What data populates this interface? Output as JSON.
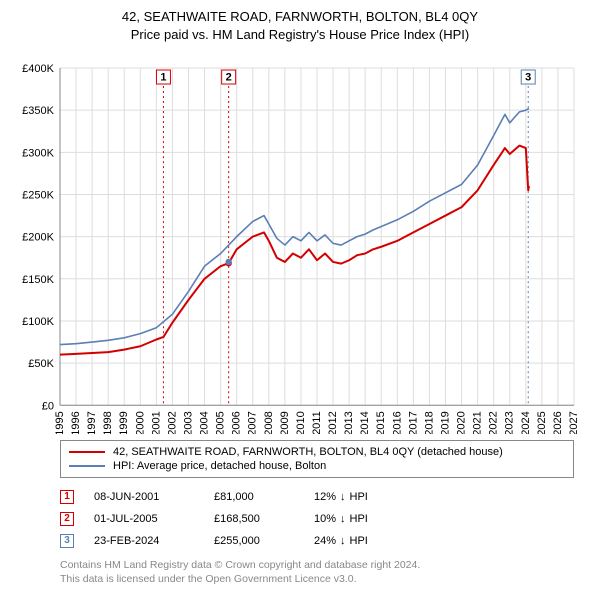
{
  "titles": {
    "line1": "42, SEATHWAITE ROAD, FARNWORTH, BOLTON, BL4 0QY",
    "line2": "Price paid vs. HM Land Registry's House Price Index (HPI)"
  },
  "chart": {
    "type": "line",
    "background_color": "#ffffff",
    "grid_color": "#dedede",
    "axis_color": "#888888",
    "tick_label_color": "#000000",
    "tick_fontsize": 11,
    "x_years": [
      1995,
      1996,
      1997,
      1998,
      1999,
      2000,
      2001,
      2002,
      2003,
      2004,
      2005,
      2006,
      2007,
      2008,
      2009,
      2010,
      2011,
      2012,
      2013,
      2014,
      2015,
      2016,
      2017,
      2018,
      2019,
      2020,
      2021,
      2022,
      2023,
      2024,
      2025,
      2026,
      2027
    ],
    "xlim": [
      1995,
      2027
    ],
    "ylim": [
      0,
      400000
    ],
    "ytick_step": 50000,
    "ytick_labels": [
      "£0",
      "£50K",
      "£100K",
      "£150K",
      "£200K",
      "£250K",
      "£300K",
      "£350K",
      "£400K"
    ],
    "series": [
      {
        "id": "property",
        "color": "#d40000",
        "line_width": 2,
        "points": [
          [
            1995,
            60000
          ],
          [
            1996,
            61000
          ],
          [
            1997,
            62000
          ],
          [
            1998,
            63000
          ],
          [
            1999,
            66000
          ],
          [
            2000,
            70000
          ],
          [
            2001,
            78000
          ],
          [
            2001.44,
            81000
          ],
          [
            2002,
            98000
          ],
          [
            2003,
            125000
          ],
          [
            2004,
            150000
          ],
          [
            2005,
            165000
          ],
          [
            2005.5,
            168500
          ],
          [
            2006,
            185000
          ],
          [
            2007,
            200000
          ],
          [
            2007.7,
            205000
          ],
          [
            2008,
            195000
          ],
          [
            2008.5,
            175000
          ],
          [
            2009,
            170000
          ],
          [
            2009.5,
            180000
          ],
          [
            2010,
            175000
          ],
          [
            2010.5,
            185000
          ],
          [
            2011,
            172000
          ],
          [
            2011.5,
            180000
          ],
          [
            2012,
            170000
          ],
          [
            2012.5,
            168000
          ],
          [
            2013,
            172000
          ],
          [
            2013.5,
            178000
          ],
          [
            2014,
            180000
          ],
          [
            2014.5,
            185000
          ],
          [
            2015,
            188000
          ],
          [
            2016,
            195000
          ],
          [
            2017,
            205000
          ],
          [
            2018,
            215000
          ],
          [
            2019,
            225000
          ],
          [
            2020,
            235000
          ],
          [
            2021,
            255000
          ],
          [
            2022,
            285000
          ],
          [
            2022.7,
            305000
          ],
          [
            2023,
            298000
          ],
          [
            2023.6,
            308000
          ],
          [
            2024,
            305000
          ],
          [
            2024.15,
            255000
          ],
          [
            2024.2,
            260000
          ]
        ]
      },
      {
        "id": "hpi",
        "color": "#5b7fb5",
        "line_width": 1.6,
        "points": [
          [
            1995,
            72000
          ],
          [
            1996,
            73000
          ],
          [
            1997,
            75000
          ],
          [
            1998,
            77000
          ],
          [
            1999,
            80000
          ],
          [
            2000,
            85000
          ],
          [
            2001,
            92000
          ],
          [
            2002,
            108000
          ],
          [
            2003,
            135000
          ],
          [
            2004,
            165000
          ],
          [
            2005,
            180000
          ],
          [
            2006,
            200000
          ],
          [
            2007,
            218000
          ],
          [
            2007.7,
            225000
          ],
          [
            2008,
            215000
          ],
          [
            2008.5,
            198000
          ],
          [
            2009,
            190000
          ],
          [
            2009.5,
            200000
          ],
          [
            2010,
            195000
          ],
          [
            2010.5,
            205000
          ],
          [
            2011,
            195000
          ],
          [
            2011.5,
            202000
          ],
          [
            2012,
            192000
          ],
          [
            2012.5,
            190000
          ],
          [
            2013,
            195000
          ],
          [
            2013.5,
            200000
          ],
          [
            2014,
            203000
          ],
          [
            2014.5,
            208000
          ],
          [
            2015,
            212000
          ],
          [
            2016,
            220000
          ],
          [
            2017,
            230000
          ],
          [
            2018,
            242000
          ],
          [
            2019,
            252000
          ],
          [
            2020,
            262000
          ],
          [
            2021,
            285000
          ],
          [
            2022,
            320000
          ],
          [
            2022.7,
            345000
          ],
          [
            2023,
            335000
          ],
          [
            2023.6,
            348000
          ],
          [
            2024,
            350000
          ],
          [
            2024.2,
            352000
          ]
        ]
      }
    ],
    "hpi_point_marker": {
      "fill": "#5b7fb5",
      "radius": 3.2,
      "at": [
        2005.5,
        170000
      ]
    },
    "property_point_marker": {
      "fill": "#d40000",
      "radius": 3.2,
      "at": [
        2005.5,
        168500
      ]
    },
    "vertical_markers": [
      {
        "label": "1",
        "year": 2001.44,
        "color": "#d40000"
      },
      {
        "label": "2",
        "year": 2005.5,
        "color": "#d40000"
      },
      {
        "label": "3",
        "year": 2024.15,
        "color": "#5b7fb5"
      }
    ],
    "marker_box": {
      "size": 14,
      "bg": "#ffffff",
      "fontsize": 10
    }
  },
  "legend": {
    "items": [
      {
        "color": "#d40000",
        "label": "42, SEATHWAITE ROAD, FARNWORTH, BOLTON, BL4 0QY (detached house)"
      },
      {
        "color": "#5b7fb5",
        "label": "HPI: Average price, detached house, Bolton"
      }
    ]
  },
  "transactions": [
    {
      "n": "1",
      "color": "#d40000",
      "date": "08-JUN-2001",
      "price": "£81,000",
      "delta": "12%",
      "suffix": "HPI"
    },
    {
      "n": "2",
      "color": "#d40000",
      "date": "01-JUL-2005",
      "price": "£168,500",
      "delta": "10%",
      "suffix": "HPI"
    },
    {
      "n": "3",
      "color": "#5b7fb5",
      "date": "23-FEB-2024",
      "price": "£255,000",
      "delta": "24%",
      "suffix": "HPI"
    }
  ],
  "footer": {
    "line1": "Contains HM Land Registry data © Crown copyright and database right 2024.",
    "line2": "This data is licensed under the Open Government Licence v3.0."
  }
}
